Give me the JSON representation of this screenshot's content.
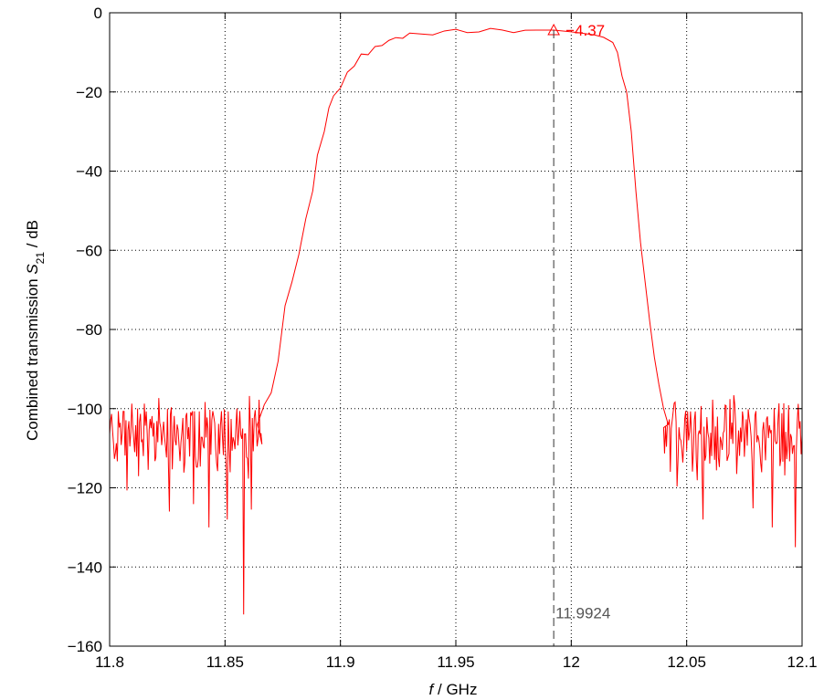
{
  "chart_data": {
    "type": "line",
    "title": "",
    "xlabel_italic": "f",
    "xlabel_rest": " / GHz",
    "ylabel_main": "Combined transmission ",
    "ylabel_sym": "S",
    "ylabel_sub": "21",
    "ylabel_unit": " / dB",
    "xlim": [
      11.8,
      12.1
    ],
    "ylim": [
      -160,
      0
    ],
    "xticks": [
      11.8,
      11.85,
      11.9,
      11.95,
      12.0,
      12.05,
      12.1
    ],
    "xtick_labels": [
      "11.8",
      "11.85",
      "11.9",
      "11.95",
      "12",
      "12.05",
      "12.1"
    ],
    "yticks": [
      0,
      -20,
      -40,
      -60,
      -80,
      -100,
      -120,
      -140,
      -160
    ],
    "ytick_labels": [
      "0",
      "−20",
      "−40",
      "−60",
      "−80",
      "−100",
      "−120",
      "−140",
      "−160"
    ],
    "grid": true,
    "series": [
      {
        "color": "#ff0000",
        "curve": [
          [
            11.864,
            -104
          ],
          [
            11.867,
            -99
          ],
          [
            11.87,
            -96
          ],
          [
            11.873,
            -88
          ],
          [
            11.876,
            -74
          ],
          [
            11.879,
            -68
          ],
          [
            11.882,
            -61
          ],
          [
            11.885,
            -52
          ],
          [
            11.888,
            -45
          ],
          [
            11.89,
            -36
          ],
          [
            11.893,
            -30
          ],
          [
            11.895,
            -24
          ],
          [
            11.897,
            -21
          ],
          [
            11.9,
            -19
          ],
          [
            11.903,
            -15
          ],
          [
            11.906,
            -13
          ],
          [
            11.909,
            -11
          ],
          [
            11.912,
            -10
          ],
          [
            11.915,
            -9
          ],
          [
            11.918,
            -8
          ],
          [
            11.921,
            -7
          ],
          [
            11.924,
            -6.5
          ],
          [
            11.927,
            -6
          ],
          [
            11.93,
            -5.7
          ],
          [
            11.935,
            -5.4
          ],
          [
            11.94,
            -5.0
          ],
          [
            11.945,
            -4.8
          ],
          [
            11.95,
            -4.7
          ],
          [
            11.955,
            -4.6
          ],
          [
            11.96,
            -4.5
          ],
          [
            11.965,
            -4.5
          ],
          [
            11.97,
            -4.45
          ],
          [
            11.975,
            -4.42
          ],
          [
            11.98,
            -4.4
          ],
          [
            11.985,
            -4.38
          ],
          [
            11.9924,
            -4.37
          ],
          [
            12.0,
            -4.8
          ],
          [
            12.005,
            -5.2
          ],
          [
            12.01,
            -5.6
          ],
          [
            12.014,
            -6.2
          ],
          [
            12.018,
            -7.5
          ],
          [
            12.02,
            -10
          ],
          [
            12.022,
            -16
          ],
          [
            12.024,
            -20
          ],
          [
            12.026,
            -30
          ],
          [
            12.028,
            -45
          ],
          [
            12.03,
            -58
          ],
          [
            12.032,
            -68
          ],
          [
            12.034,
            -78
          ],
          [
            12.036,
            -87
          ],
          [
            12.038,
            -94
          ],
          [
            12.04,
            -100
          ],
          [
            12.042,
            -104
          ]
        ],
        "noise_left": {
          "x_range": [
            11.8,
            11.866
          ],
          "level": -107,
          "spread": 7
        },
        "noise_right": {
          "x_range": [
            12.04,
            12.1
          ],
          "level": -107,
          "spread": 7
        },
        "spikes": [
          [
            11.819,
            -134
          ],
          [
            11.832,
            -136
          ],
          [
            11.843,
            -130
          ],
          [
            11.858,
            -152
          ],
          [
            11.826,
            -126
          ],
          [
            11.851,
            -128
          ],
          [
            12.046,
            -132
          ],
          [
            12.057,
            -128
          ],
          [
            12.069,
            -127
          ],
          [
            12.087,
            -130
          ],
          [
            12.097,
            -135
          ],
          [
            12.079,
            -126
          ]
        ]
      }
    ],
    "annotations": [
      {
        "type": "marker",
        "x": 11.9924,
        "y": -4.37,
        "label": "−4.37",
        "color": "#ff0000"
      },
      {
        "type": "vline",
        "x": 11.9924,
        "label": "11.9924",
        "color": "#555555"
      }
    ]
  }
}
